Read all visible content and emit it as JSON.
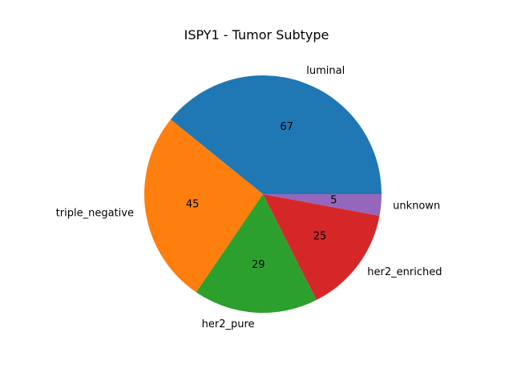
{
  "chart_data": {
    "type": "pie",
    "title": "ISPY1 - Tumor Subtype",
    "categories": [
      "luminal",
      "triple_negative",
      "her2_pure",
      "her2_enriched",
      "unknown"
    ],
    "values": [
      67,
      45,
      29,
      25,
      5
    ],
    "value_labels": [
      "67",
      "45",
      "29",
      "25",
      "5"
    ],
    "colors": [
      "#1f77b4",
      "#ff7f0e",
      "#2ca02c",
      "#d62728",
      "#9467bd"
    ],
    "start_angle_deg": 0,
    "direction": "counterclockwise"
  }
}
